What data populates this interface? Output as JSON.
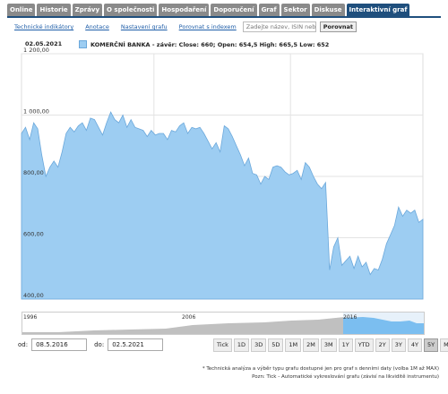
{
  "tabs": [
    {
      "label": "Online"
    },
    {
      "label": "Historie"
    },
    {
      "label": "Zprávy"
    },
    {
      "label": "O společnosti"
    },
    {
      "label": "Hospodaření"
    },
    {
      "label": "Doporučení"
    },
    {
      "label": "Graf"
    },
    {
      "label": "Sektor"
    },
    {
      "label": "Diskuse"
    },
    {
      "label": "Interaktivní graf"
    }
  ],
  "active_tab": "Interaktivní graf",
  "toolbar": {
    "indicators": "Technické indikátory",
    "annotations": "Anotace",
    "settings": "Nastavení grafu",
    "compare_index": "Porovnat s indexem",
    "search_placeholder": "Zadejte název, ISIN nebo",
    "compare_button": "Porovnat"
  },
  "legend": {
    "date": "02.05.2021",
    "label": "KOMERČNÍ BANKA - závěr: Close: 660; Open: 654,5 High: 665,5 Low: 652",
    "color": "#9dcdf2"
  },
  "chart_data": {
    "type": "area",
    "y_ticks": [
      "1 200,00",
      "1 000,00",
      "800,00",
      "600,00",
      "400,00"
    ],
    "ylim": [
      400,
      1200
    ],
    "x_range": [
      "08.5.2016",
      "02.5.2021"
    ],
    "series": [
      {
        "values": [
          940,
          960,
          920,
          975,
          955,
          870,
          800,
          830,
          850,
          830,
          880,
          940,
          960,
          945,
          965,
          975,
          950,
          990,
          985,
          960,
          935,
          975,
          1010,
          985,
          975,
          1000,
          960,
          985,
          960,
          955,
          950,
          930,
          950,
          935,
          940,
          940,
          920,
          950,
          945,
          965,
          975,
          940,
          960,
          955,
          960,
          940,
          915,
          890,
          910,
          880,
          965,
          955,
          930,
          900,
          870,
          835,
          860,
          810,
          805,
          775,
          800,
          790,
          830,
          835,
          830,
          815,
          805,
          810,
          820,
          790,
          845,
          830,
          800,
          775,
          760,
          780,
          495,
          570,
          600,
          510,
          525,
          540,
          500,
          540,
          505,
          520,
          480,
          500,
          495,
          530,
          580,
          610,
          640,
          700,
          670,
          690,
          680,
          690,
          650,
          660
        ]
      }
    ]
  },
  "navigator": {
    "years": [
      "1996",
      "2006",
      "2016"
    ]
  },
  "date_range": {
    "from_label": "od:",
    "from": "08.5.2016",
    "to_label": "do:",
    "to": "02.5.2021"
  },
  "range_buttons": [
    "Tick",
    "1D",
    "3D",
    "5D",
    "1M",
    "2M",
    "3M",
    "1Y",
    "YTD",
    "2Y",
    "3Y",
    "4Y",
    "5Y",
    "Max"
  ],
  "range_selected": "5Y",
  "notes": [
    "* Technická analýza a výběr typu grafu dostupné jen pro graf s denními daty (volba 1M až MAX)",
    "Pozn: Tick - Automatické vykreslování grafu (závisí na likviditě instrumentu)"
  ]
}
